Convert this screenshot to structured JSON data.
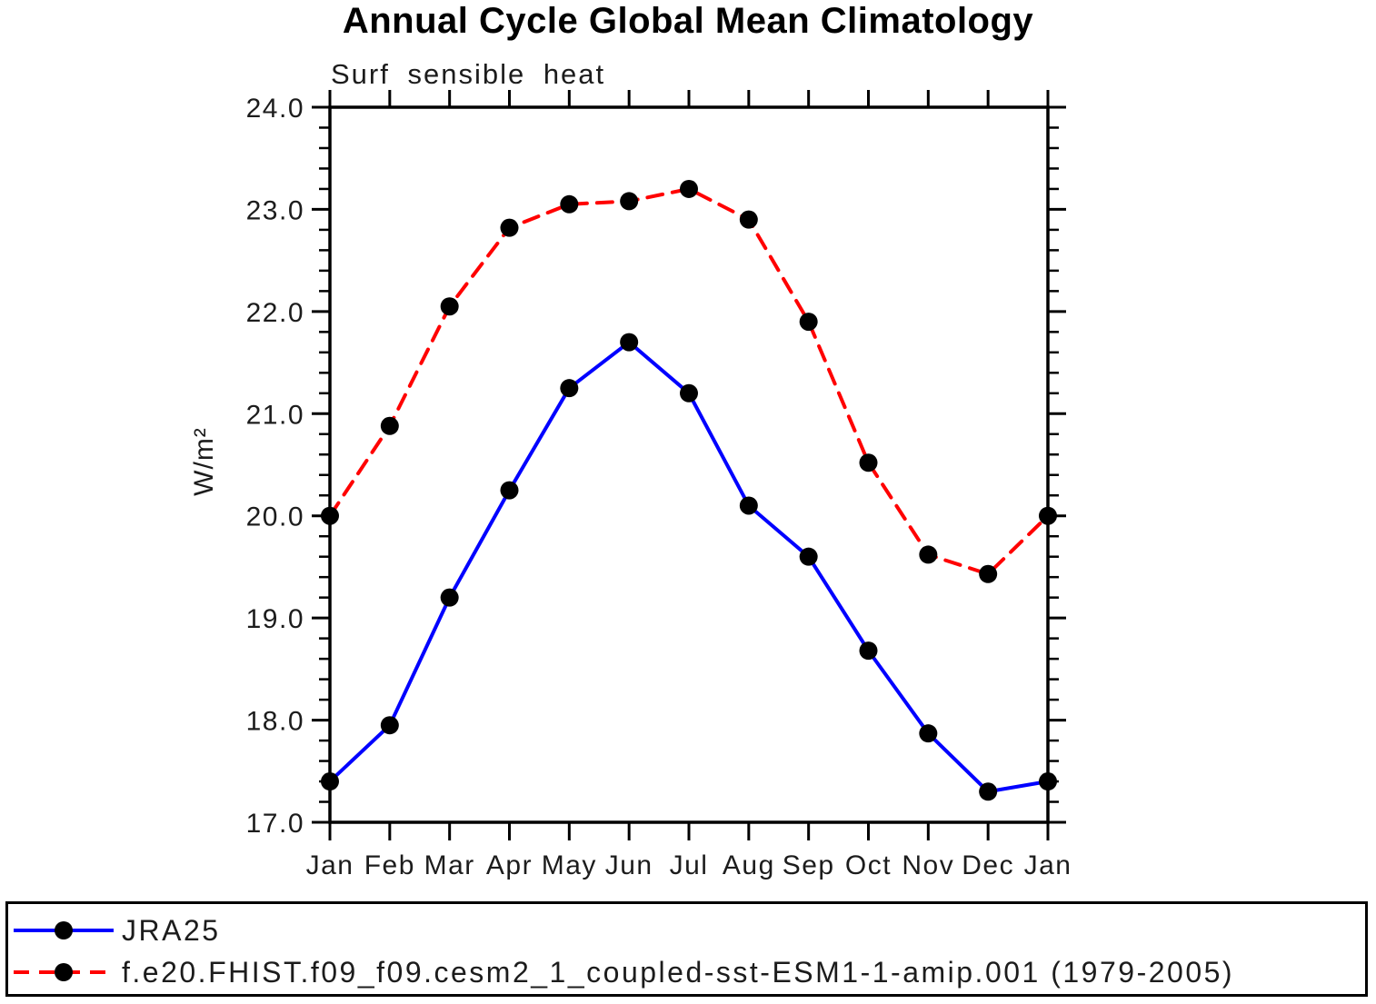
{
  "title": "Annual Cycle Global Mean Climatology",
  "subtitle": "Surf sensible heat",
  "y_axis_label": "W/m²",
  "colors": {
    "jra25_line": "#0000ff",
    "model_line": "#ff0000",
    "marker": "#000000",
    "axis": "#000000",
    "text": "#1c1c1c"
  },
  "legend": {
    "position": "bottom",
    "entries": [
      {
        "label": "JRA25",
        "style": "solid"
      },
      {
        "label": "f.e20.FHIST.f09_f09.cesm2_1_coupled-sst-ESM1-1-amip.001 (1979-2005)",
        "style": "dashed"
      }
    ]
  },
  "chart_data": {
    "type": "line",
    "categories": [
      "Jan",
      "Feb",
      "Mar",
      "Apr",
      "May",
      "Jun",
      "Jul",
      "Aug",
      "Sep",
      "Oct",
      "Nov",
      "Dec",
      "Jan"
    ],
    "series": [
      {
        "name": "JRA25",
        "color": "#0000ff",
        "style": "solid",
        "marker": "filled-circle",
        "values": [
          17.4,
          17.95,
          19.2,
          20.25,
          21.25,
          21.7,
          21.2,
          20.1,
          19.6,
          18.68,
          17.87,
          17.3,
          17.4
        ]
      },
      {
        "name": "f.e20.FHIST.f09_f09.cesm2_1_coupled-sst-ESM1-1-amip.001 (1979-2005)",
        "color": "#ff0000",
        "style": "dashed",
        "marker": "filled-circle",
        "values": [
          20.0,
          20.88,
          22.05,
          22.82,
          23.05,
          23.08,
          23.2,
          22.9,
          21.9,
          20.52,
          19.62,
          19.43,
          20.0
        ]
      }
    ],
    "title": "Annual Cycle Global Mean Climatology",
    "subtitle": "Surf sensible heat",
    "xlabel": "",
    "ylabel": "W/m²",
    "ylim": [
      17.0,
      24.0
    ],
    "ytick_step": 1.0,
    "ytick_minor_step": 0.2,
    "ytick_labels": [
      "17.0",
      "18.0",
      "19.0",
      "20.0",
      "21.0",
      "22.0",
      "23.0",
      "24.0"
    ],
    "grid": false,
    "legend_position": "bottom"
  }
}
